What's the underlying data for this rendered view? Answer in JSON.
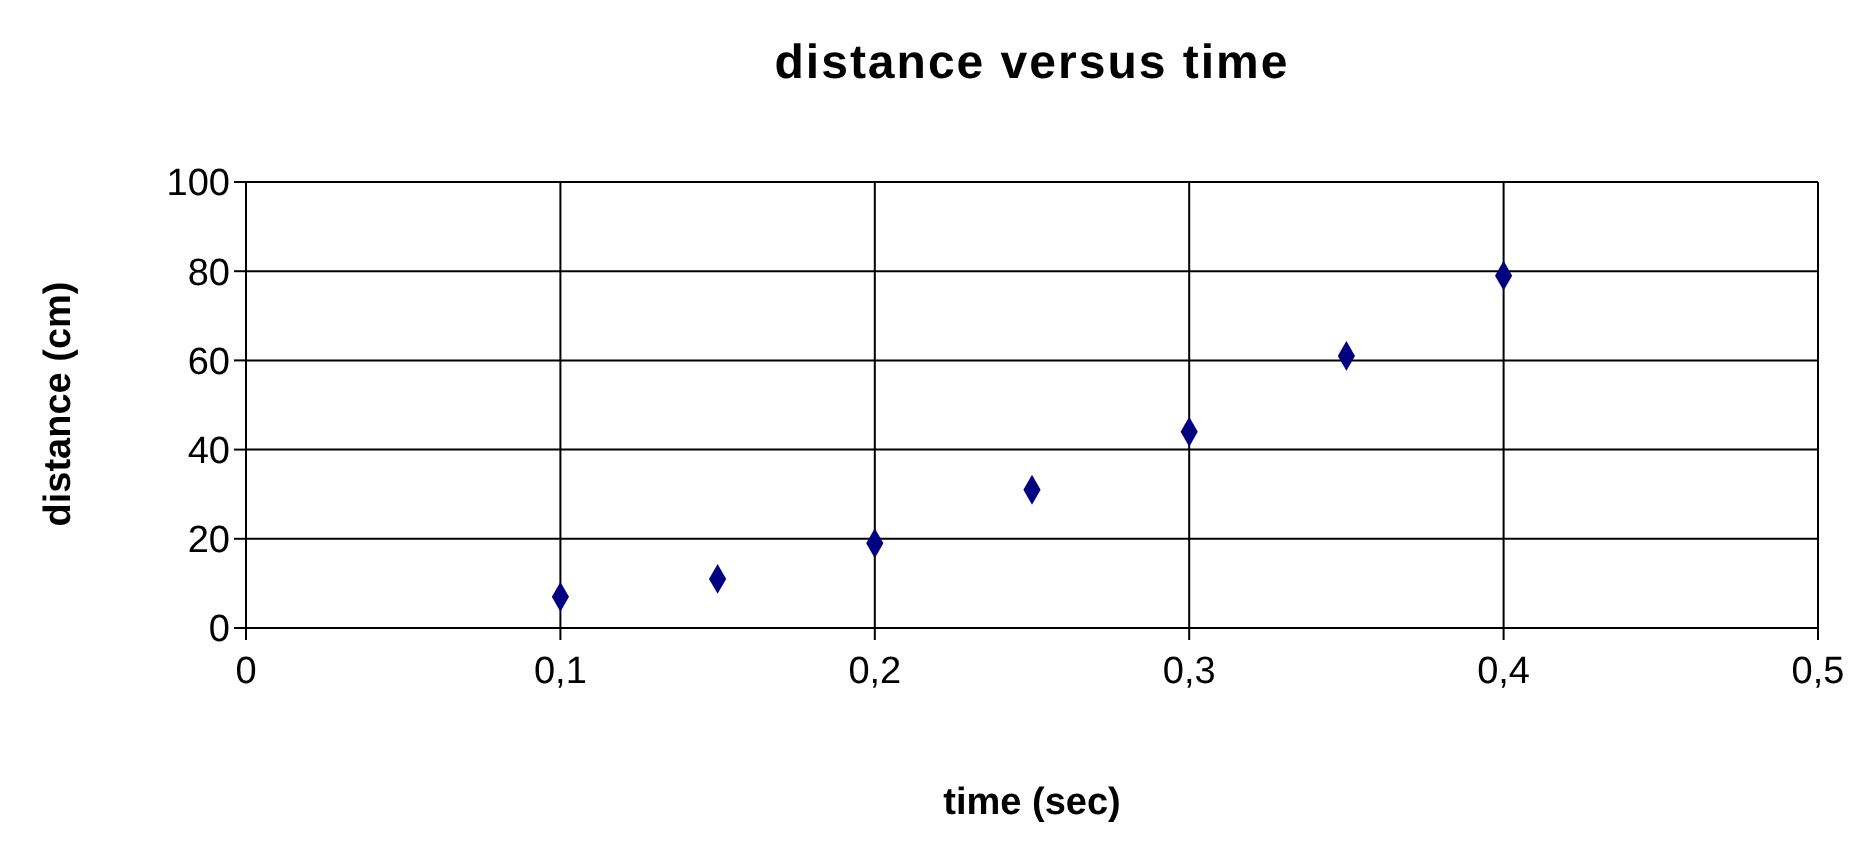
{
  "chart_data": {
    "type": "scatter",
    "title": "distance versus time",
    "xlabel": "time (sec)",
    "ylabel": "distance (cm)",
    "x": [
      0.1,
      0.15,
      0.2,
      0.25,
      0.3,
      0.35,
      0.4
    ],
    "series": [
      {
        "color": "#000080",
        "values": [
          7,
          11,
          19,
          31,
          44,
          61,
          79
        ]
      }
    ],
    "xlim": [
      0,
      0.5
    ],
    "xticks": [
      0,
      {
        "value": 0.1,
        "label": "0,1"
      },
      {
        "value": 0.2,
        "label": "0,2"
      },
      {
        "value": 0.3,
        "label": "0,3"
      },
      {
        "value": 0.4,
        "label": "0,4"
      },
      {
        "value": 0.5,
        "label": "0,5"
      }
    ],
    "ylim": [
      0,
      100
    ],
    "yticks": [
      0,
      20,
      40,
      60,
      80,
      100
    ],
    "grid": true,
    "marker": "diamond",
    "legend": false
  }
}
